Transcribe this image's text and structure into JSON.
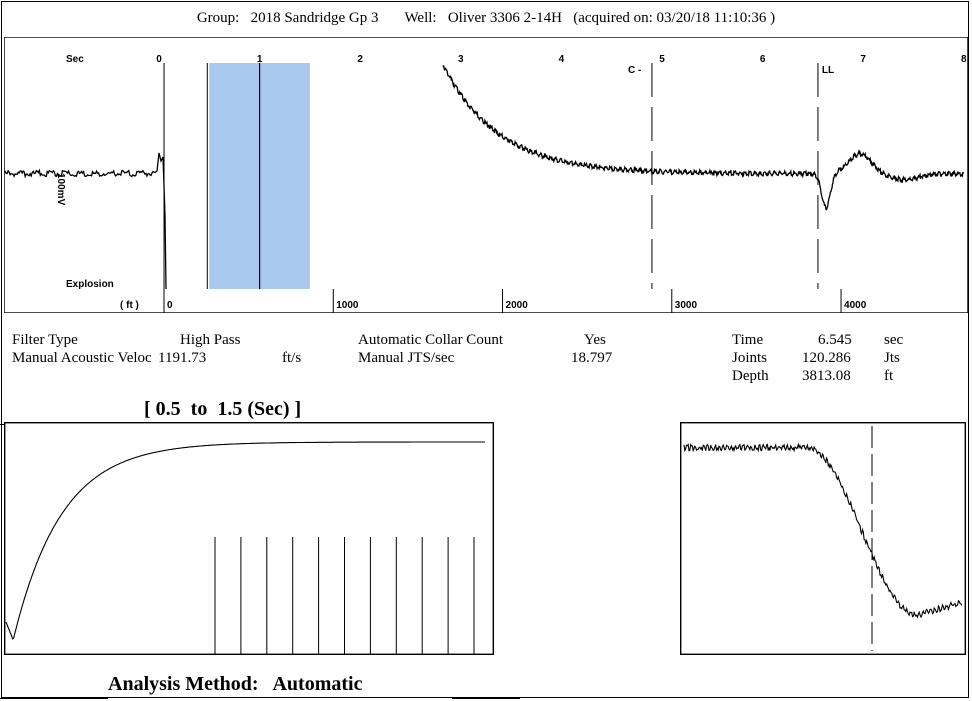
{
  "header": {
    "group_label": "Group:",
    "group_value": "2018 Sandridge Gp 3",
    "well_label": "Well:",
    "well_value": "Oliver 3306 2-14H",
    "acquired_text": "(acquired on: 03/20/18 11:10:36 )"
  },
  "chart_data": [
    {
      "type": "line",
      "name": "acoustic-trace",
      "x_axis_top": {
        "label": "Sec",
        "ticks": [
          "0",
          "1",
          "2",
          "3",
          "4",
          "5",
          "6",
          "7",
          "8"
        ],
        "range": [
          0,
          8
        ]
      },
      "x_axis_bottom": {
        "label": "( ft )",
        "ticks": [
          "0",
          "1000",
          "2000",
          "3000",
          "4000"
        ],
        "range": [
          0,
          4750
        ]
      },
      "y_axis": {
        "label": "100mV"
      },
      "left_label": "Explosion",
      "markers": [
        {
          "label": "C",
          "x_sec": 4.9,
          "style": "dashed"
        },
        {
          "label": "LL",
          "x_sec": 6.55,
          "style": "dashed"
        }
      ],
      "highlight": {
        "from_sec": 0.5,
        "to_sec": 1.5,
        "color": "#a9c8ee"
      },
      "series": [
        {
          "x": [
            -1.6,
            -0.5,
            0.0,
            0.05,
            0.1,
            3.0,
            3.5,
            4.0,
            4.5,
            5.0,
            5.5,
            6.0,
            6.5,
            6.6,
            6.7,
            6.9,
            7.1,
            7.4,
            7.8,
            8.0
          ],
          "y": [
            0.0,
            0.0,
            0.0,
            0.17,
            -1.0,
            1.0,
            0.42,
            0.18,
            0.08,
            0.04,
            0.02,
            0.01,
            0.0,
            -0.2,
            -0.27,
            0.12,
            0.15,
            0.0,
            -0.05,
            -0.03
          ]
        }
      ]
    },
    {
      "type": "line",
      "name": "analysis-window",
      "title": "[ 0.5  to  1.5 (Sec) ]",
      "x_range": [
        0.5,
        1.5
      ],
      "series": [
        {
          "x": [
            0.5,
            0.51,
            0.53,
            0.56,
            0.6,
            0.65,
            0.7,
            0.8,
            0.9,
            1.0,
            1.1,
            1.2,
            1.3,
            1.4,
            1.5
          ],
          "y": [
            -0.8,
            -0.98,
            -0.9,
            -0.6,
            -0.2,
            0.2,
            0.48,
            0.76,
            0.9,
            0.96,
            0.98,
            0.99,
            1.0,
            1.0,
            1.0
          ]
        }
      ],
      "collar_count": 11
    },
    {
      "type": "line",
      "name": "zoom-window",
      "marker": {
        "x_sec": 6.545,
        "style": "dashed"
      },
      "series": [
        {
          "x": [
            6.3,
            6.4,
            6.5,
            6.52,
            6.56,
            6.6,
            6.65,
            6.7,
            6.72,
            6.75,
            6.8
          ],
          "y": [
            1.0,
            1.0,
            1.0,
            0.96,
            0.6,
            0.0,
            -0.55,
            -0.82,
            -0.86,
            -0.8,
            -0.72
          ]
        }
      ]
    }
  ],
  "info": {
    "filter_type_label": "Filter Type",
    "filter_type_value": "High Pass",
    "velocity_label": "Manual Acoustic Veloc",
    "velocity_value": "1191.73",
    "velocity_unit": "ft/s",
    "collar_label": "Automatic Collar Count",
    "collar_value": "Yes",
    "jts_label": "Manual JTS/sec",
    "jts_value": "18.797",
    "time_label": "Time",
    "time_value": "6.545",
    "time_unit": "sec",
    "joints_label": "Joints",
    "joints_value": "120.286",
    "joints_unit": "Jts",
    "depth_label": "Depth",
    "depth_value": "3813.08",
    "depth_unit": "ft"
  },
  "footer": {
    "analysis_label": "Analysis Method:",
    "analysis_value": "Automatic"
  }
}
